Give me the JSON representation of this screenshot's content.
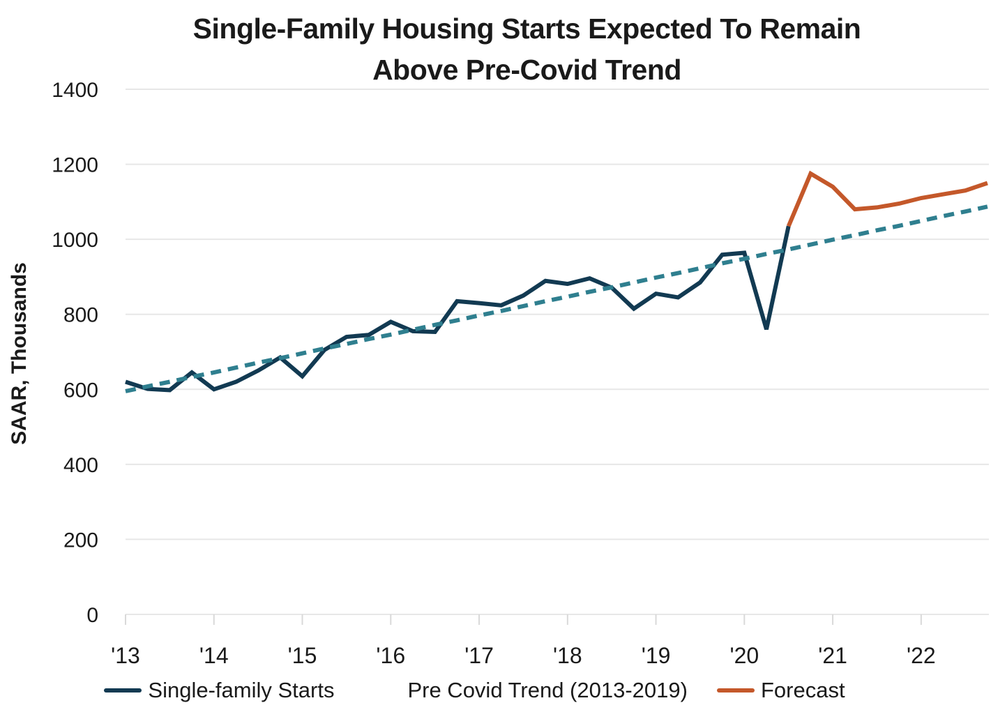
{
  "title": {
    "line1": "Single-Family Housing Starts Expected To Remain",
    "line2": "Above Pre-Covid Trend"
  },
  "y_axis": {
    "label": "SAAR, Thousands",
    "ticks": [
      0,
      200,
      400,
      600,
      800,
      1000,
      1200,
      1400
    ],
    "min": 0,
    "max": 1400
  },
  "x_axis": {
    "tick_labels": [
      "'13",
      "'14",
      "'15",
      "'16",
      "'17",
      "'18",
      "'19",
      "'20",
      "'21",
      "'22"
    ],
    "quarters_per_tick": 4
  },
  "colors": {
    "starts": "#123a52",
    "trend": "#2f7f8f",
    "forecast": "#c4582a",
    "gridline": "#e7e7e7",
    "axis": "#d9d9d9",
    "text": "#1a1a1a"
  },
  "chart_data": {
    "type": "line",
    "title": "Single-Family Housing Starts Expected To Remain Above Pre-Covid Trend",
    "xlabel": "",
    "ylabel": "SAAR, Thousands",
    "ylim": [
      0,
      1400
    ],
    "x_frequency": "quarterly",
    "x_range": [
      "2013Q1",
      "2022Q4"
    ],
    "grid": "horizontal-only",
    "legend_position": "bottom",
    "series": [
      {
        "name": "Single-family Starts",
        "style": "solid",
        "color": "#123a52",
        "start_quarter_index": 0,
        "values": [
          620,
          601,
          598,
          645,
          600,
          620,
          650,
          685,
          635,
          705,
          740,
          745,
          780,
          755,
          753,
          835,
          830,
          824,
          850,
          889,
          881,
          896,
          871,
          815,
          855,
          845,
          885,
          959,
          964,
          760,
          1035
        ]
      },
      {
        "name": "Pre Covid Trend (2013-2019)",
        "style": "dashed",
        "color": "#2f7f8f",
        "start_quarter_index": 0,
        "values": [
          595,
          608,
          620,
          633,
          645,
          658,
          671,
          683,
          696,
          709,
          721,
          734,
          746,
          759,
          772,
          784,
          797,
          809,
          822,
          835,
          847,
          860,
          872,
          885,
          898,
          910,
          923,
          936,
          948,
          961,
          973,
          986,
          999,
          1011,
          1024,
          1036,
          1049,
          1062,
          1074,
          1087
        ]
      },
      {
        "name": "Forecast",
        "style": "solid",
        "color": "#c4582a",
        "start_quarter_index": 30,
        "values": [
          1035,
          1175,
          1140,
          1080,
          1085,
          1095,
          1110,
          1120,
          1130,
          1150
        ]
      }
    ]
  }
}
